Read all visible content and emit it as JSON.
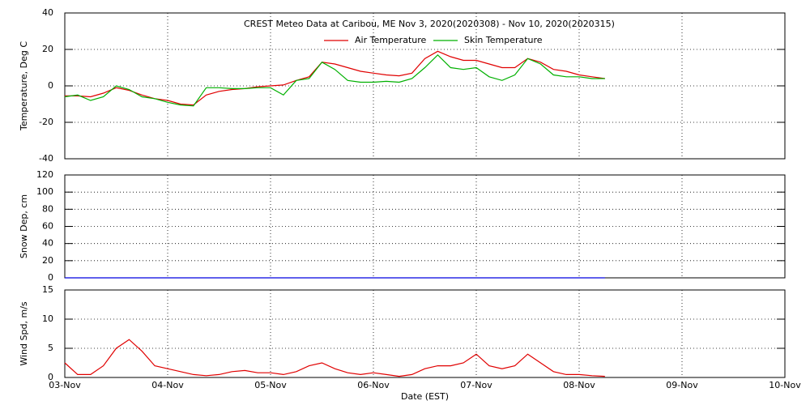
{
  "chart_data": [
    {
      "type": "line",
      "title": "CREST Meteo Data at Caribou, ME   Nov  3, 2020(2020308) - Nov 10, 2020(2020315)",
      "y_label": "Temperature, Deg C",
      "ylim": [
        -40,
        40
      ],
      "yticks": [
        -40,
        -20,
        0,
        20,
        40
      ],
      "grid": true,
      "series": [
        {
          "name": "Air Temperature",
          "color": "#e00000",
          "values": [
            -5.5,
            -5.5,
            -6,
            -4,
            -1,
            -2.5,
            -5,
            -7,
            -8,
            -10,
            -10.5,
            -5,
            -3,
            -2,
            -1.5,
            -0.5,
            0,
            0.5,
            3,
            5,
            13,
            12,
            10,
            8,
            7,
            6,
            5.5,
            7,
            15,
            19,
            16,
            14,
            14,
            12,
            10,
            10,
            15,
            13,
            9,
            8,
            6,
            5,
            4,
            null,
            null,
            null,
            null,
            null,
            null,
            null,
            null,
            null,
            null,
            null,
            null,
            null,
            null
          ]
        },
        {
          "name": "Skin Temperature",
          "color": "#00b000",
          "values": [
            -6,
            -5,
            -8,
            -6,
            0,
            -2,
            -6,
            -7,
            -9,
            -10.5,
            -11,
            -1,
            -1,
            -1.5,
            -1.5,
            -1,
            -1,
            -5,
            3,
            4,
            13,
            9,
            3,
            2,
            2,
            2.5,
            2,
            4,
            10,
            17,
            10,
            9,
            10,
            5,
            3,
            6,
            15,
            12,
            6,
            5,
            5,
            4,
            4,
            null,
            null,
            null,
            null,
            null,
            null,
            null,
            null,
            null,
            null,
            null,
            null,
            null,
            null
          ]
        }
      ]
    },
    {
      "type": "line",
      "y_label": "Snow Dep, cm",
      "ylim": [
        0,
        120
      ],
      "yticks": [
        0,
        20,
        40,
        60,
        80,
        100,
        120
      ],
      "grid": true,
      "series": [
        {
          "color": "#0000e0",
          "values": [
            0,
            0,
            0,
            0,
            0,
            0,
            0,
            0,
            0,
            0,
            0,
            0,
            0,
            0,
            0,
            0,
            0,
            0,
            0,
            0,
            0,
            0,
            0,
            0,
            0,
            0,
            0,
            0,
            0,
            0,
            0,
            0,
            0,
            0,
            0,
            0,
            0,
            0,
            0,
            0,
            0,
            0,
            0,
            null,
            null,
            null,
            null,
            null,
            null,
            null,
            null,
            null,
            null,
            null,
            null,
            null,
            null
          ]
        }
      ]
    },
    {
      "type": "line",
      "y_label": "Wind Spd, m/s",
      "x_label": "Date (EST)",
      "ylim": [
        0,
        15
      ],
      "yticks": [
        0,
        5,
        10,
        15
      ],
      "grid": true,
      "categories": [
        "03-Nov",
        null,
        null,
        null,
        null,
        null,
        null,
        null,
        "04-Nov",
        null,
        null,
        null,
        null,
        null,
        null,
        null,
        "05-Nov",
        null,
        null,
        null,
        null,
        null,
        null,
        null,
        "06-Nov",
        null,
        null,
        null,
        null,
        null,
        null,
        null,
        "07-Nov",
        null,
        null,
        null,
        null,
        null,
        null,
        null,
        "08-Nov",
        null,
        null,
        null,
        null,
        null,
        null,
        null,
        "09-Nov",
        null,
        null,
        null,
        null,
        null,
        null,
        null,
        "10-Nov"
      ],
      "series": [
        {
          "color": "#e00000",
          "values": [
            2.5,
            0.5,
            0.5,
            2,
            5,
            6.5,
            4.5,
            2,
            1.5,
            1,
            0.5,
            0.3,
            0.5,
            1,
            1.2,
            0.8,
            0.8,
            0.5,
            1,
            2,
            2.5,
            1.5,
            0.8,
            0.5,
            0.8,
            0.5,
            0.2,
            0.5,
            1.5,
            2,
            2,
            2.5,
            4,
            2,
            1.5,
            2,
            4,
            2.5,
            1,
            0.5,
            0.5,
            0.3,
            0.2,
            null,
            null,
            null,
            null,
            null,
            null,
            null,
            null,
            null,
            null,
            null,
            null,
            null,
            null
          ]
        }
      ]
    }
  ]
}
